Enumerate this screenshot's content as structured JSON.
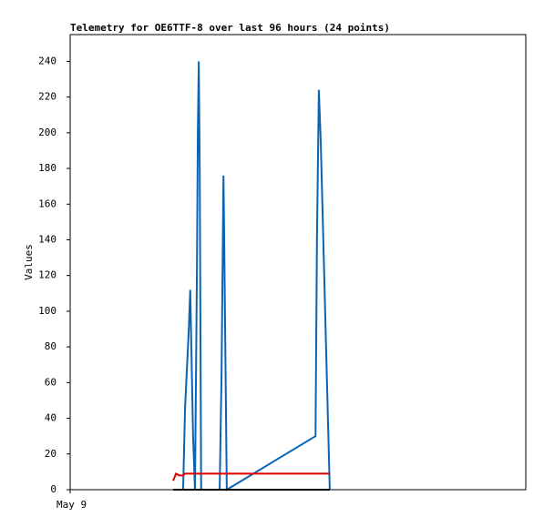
{
  "chart_data": {
    "type": "line",
    "title": "Telemetry for OE6TTF-8 over last 96 hours (24 points)",
    "y_label": "Values",
    "x": [
      21.7,
      22.3,
      23.0,
      23.8,
      24.2,
      25.0,
      25.3,
      25.9,
      26.3,
      26.7,
      26.9,
      27.1,
      27.3,
      27.6,
      31.5,
      31.9,
      32.3,
      32.4,
      33.0,
      51.7,
      52.0,
      52.4,
      52.8,
      54.7
    ],
    "series": [
      {
        "color": "#0a64b4",
        "values": [
          0,
          0,
          0,
          0,
          45,
          90,
          112,
          30,
          0,
          120,
          200,
          240,
          180,
          0,
          0,
          65,
          176,
          155,
          0,
          30,
          140,
          224,
          195,
          0
        ]
      },
      {
        "color": "#e00000",
        "values": [
          5,
          9,
          8,
          8,
          9,
          9,
          9,
          9,
          9,
          9,
          9,
          9,
          9,
          9,
          9,
          9,
          9,
          9,
          9,
          9,
          9,
          9,
          9,
          9
        ]
      },
      {
        "color": "#000000",
        "values": [
          0,
          0,
          0,
          0,
          0,
          0,
          0,
          0,
          0,
          0,
          0,
          0,
          0,
          0,
          0,
          0,
          0,
          0,
          0,
          0,
          0,
          0,
          0,
          0
        ]
      }
    ],
    "xlim": [
      0,
      96
    ],
    "xticks": [
      {
        "value": 0,
        "label": "May 9"
      }
    ],
    "ylim": [
      0,
      255
    ],
    "yticks": [
      0,
      20,
      40,
      60,
      80,
      100,
      120,
      140,
      160,
      180,
      200,
      220,
      240
    ]
  }
}
